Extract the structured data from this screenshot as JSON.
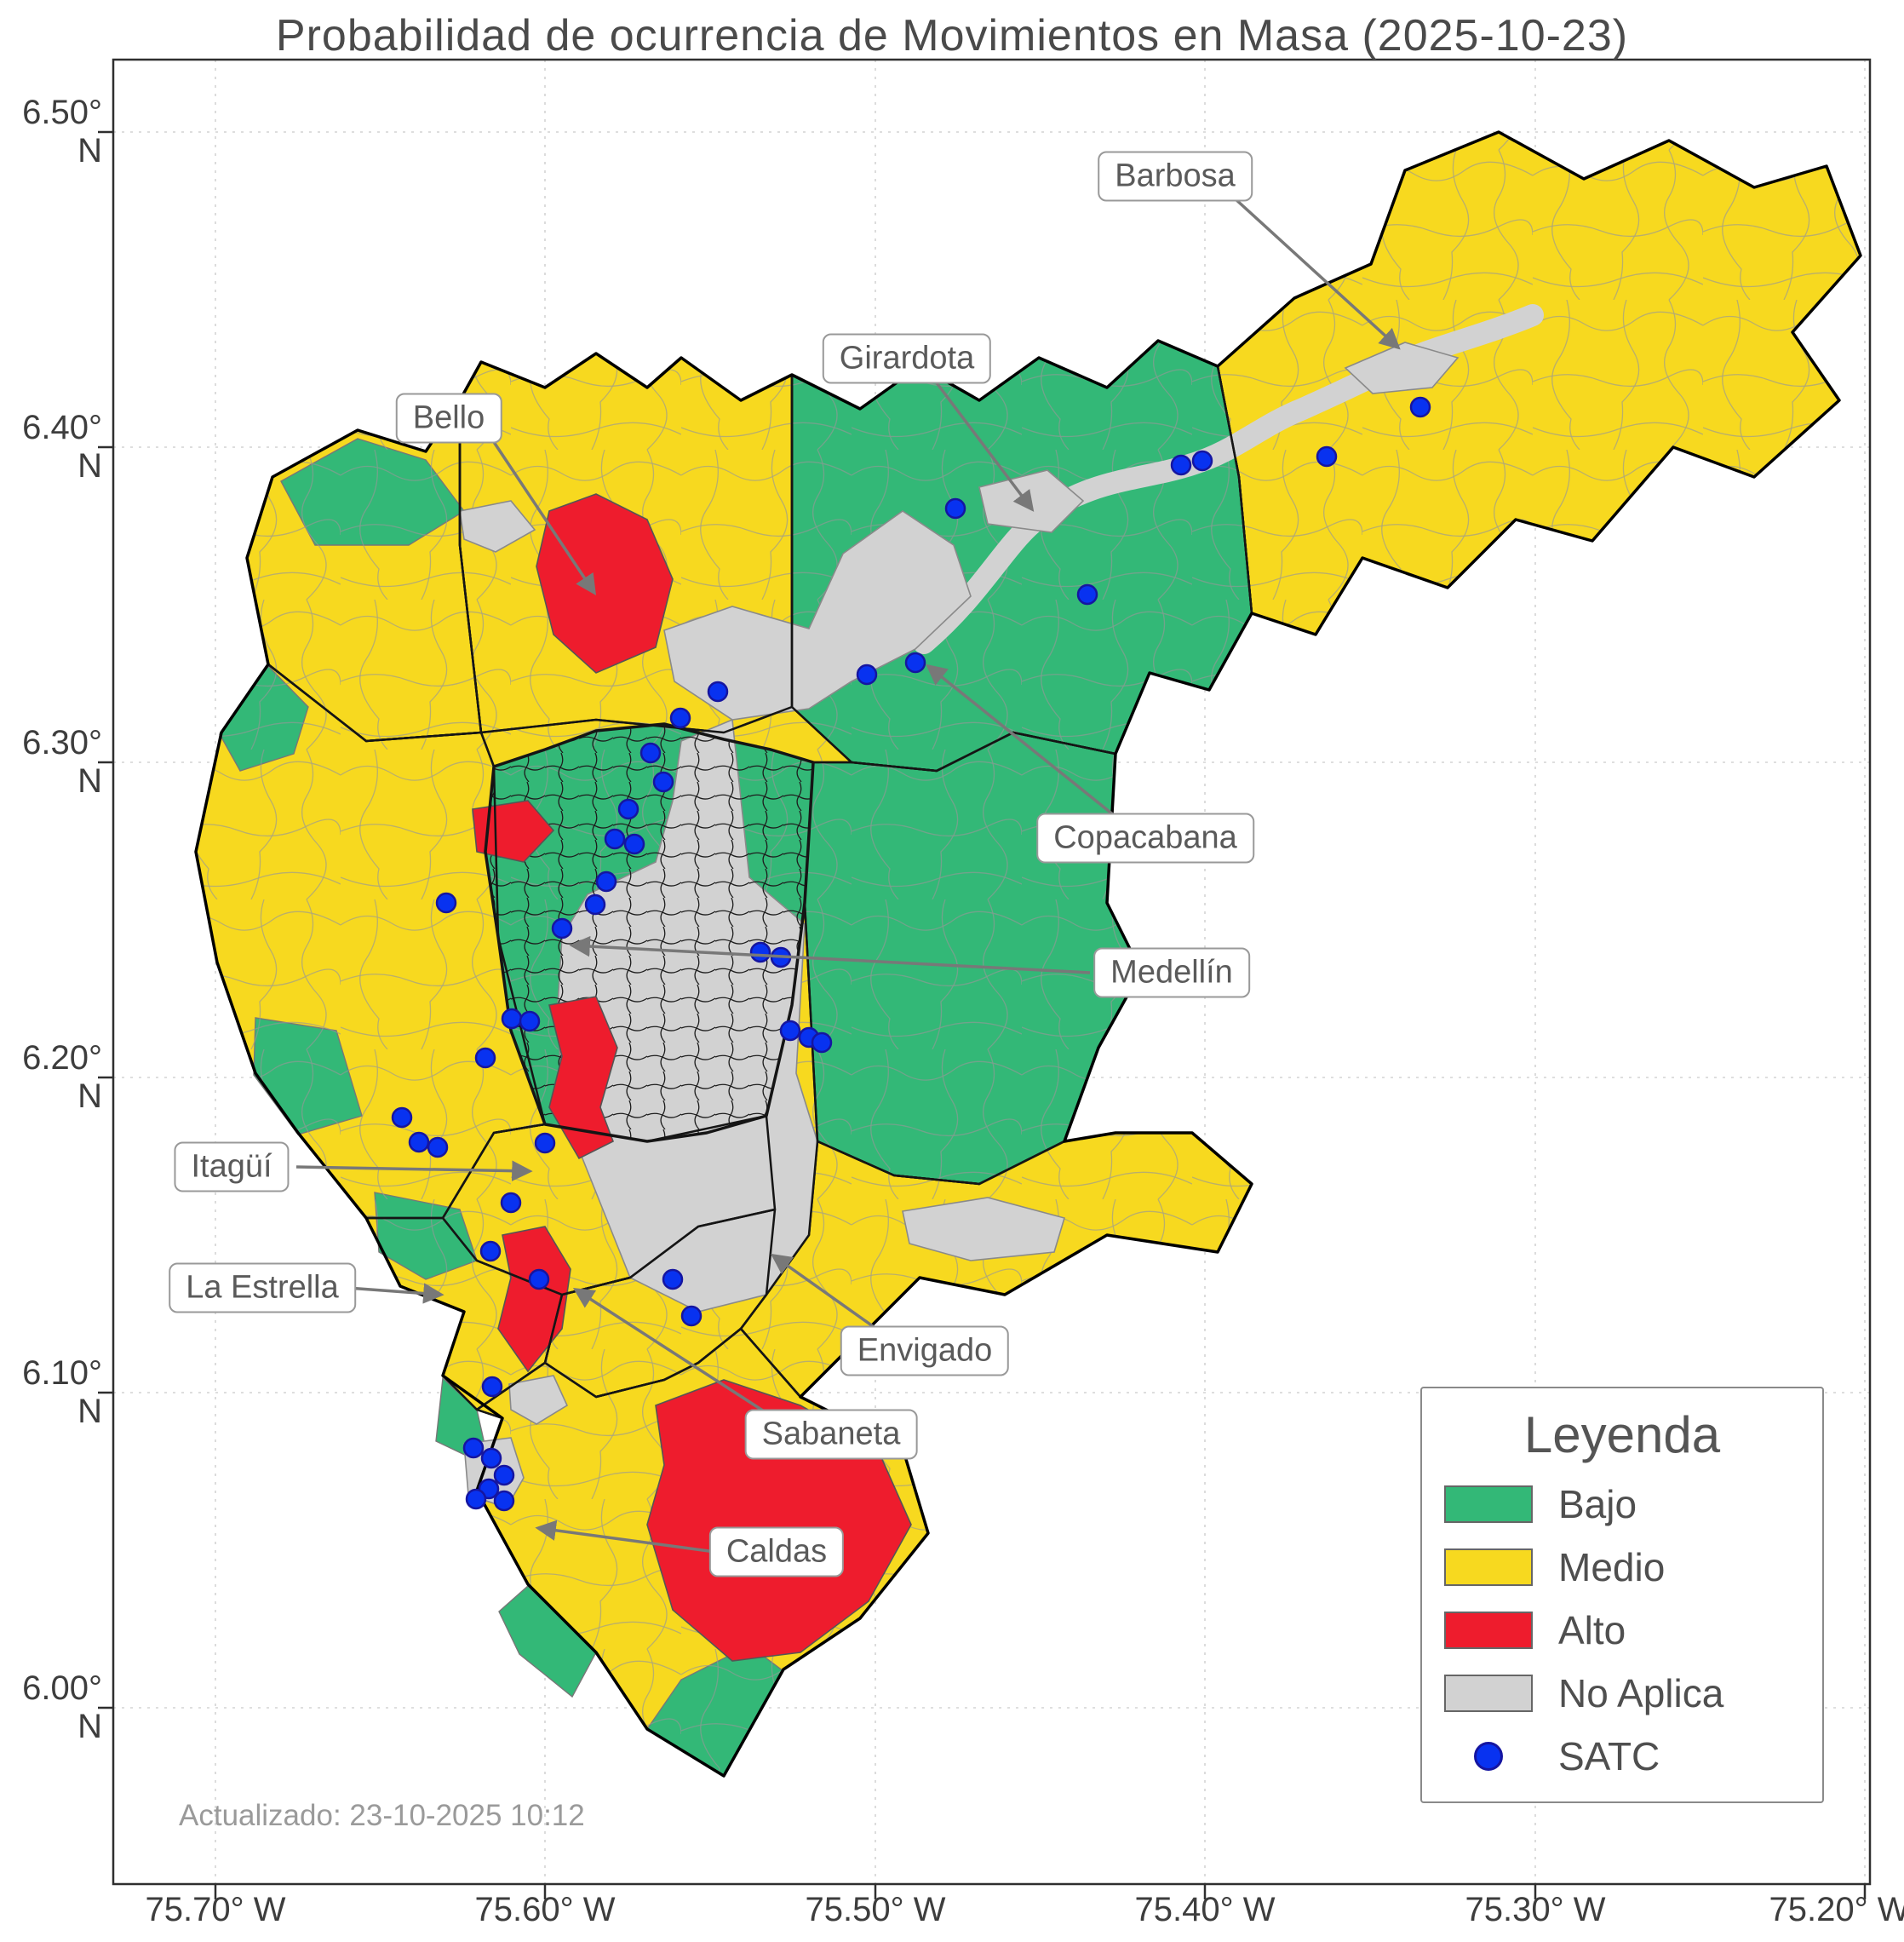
{
  "title": "Probabilidad de ocurrencia de Movimientos en Masa (2025-10-23)",
  "footer": {
    "updated": "Actualizado: 23-10-2025 10:12"
  },
  "axes": {
    "x_ticks": [
      "75.70° W",
      "75.60° W",
      "75.50° W",
      "75.40° W",
      "75.30° W",
      "75.20° W"
    ],
    "y_ticks": [
      "6.50° N",
      "6.40° N",
      "6.30° N",
      "6.20° N",
      "6.10° N",
      "6.00° N"
    ]
  },
  "legend": {
    "title": "Leyenda",
    "items": [
      {
        "label": "Bajo",
        "color_key": "bajo"
      },
      {
        "label": "Medio",
        "color_key": "medio"
      },
      {
        "label": "Alto",
        "color_key": "alto"
      },
      {
        "label": "No Aplica",
        "color_key": "no_aplica"
      },
      {
        "label": "SATC",
        "color_key": "satc"
      }
    ]
  },
  "annotations": [
    {
      "label": "Barbosa"
    },
    {
      "label": "Girardota"
    },
    {
      "label": "Bello"
    },
    {
      "label": "Copacabana"
    },
    {
      "label": "Medellín"
    },
    {
      "label": "Itagüí"
    },
    {
      "label": "La Estrella"
    },
    {
      "label": "Envigado"
    },
    {
      "label": "Sabaneta"
    },
    {
      "label": "Caldas"
    }
  ],
  "colors": {
    "bajo": "#33b877",
    "medio": "#f7d91f",
    "alto": "#ee1c2d",
    "no_aplica": "#d2d2d2",
    "satc": "#0832f0"
  },
  "map": {
    "satc_points": [
      [
        1668,
        478
      ],
      [
        1558,
        536
      ],
      [
        1387,
        546
      ],
      [
        1412,
        541
      ],
      [
        1277,
        698
      ],
      [
        1122,
        597
      ],
      [
        1075,
        778
      ],
      [
        1018,
        792
      ],
      [
        843,
        812
      ],
      [
        799,
        843
      ],
      [
        764,
        884
      ],
      [
        779,
        918
      ],
      [
        738,
        950
      ],
      [
        722,
        985
      ],
      [
        745,
        991
      ],
      [
        712,
        1035
      ],
      [
        699,
        1062
      ],
      [
        660,
        1090
      ],
      [
        893,
        1118
      ],
      [
        917,
        1124
      ],
      [
        928,
        1210
      ],
      [
        950,
        1218
      ],
      [
        965,
        1224
      ],
      [
        524,
        1060
      ],
      [
        601,
        1196
      ],
      [
        622,
        1199
      ],
      [
        570,
        1242
      ],
      [
        472,
        1312
      ],
      [
        492,
        1341
      ],
      [
        514,
        1347
      ],
      [
        640,
        1342
      ],
      [
        600,
        1412
      ],
      [
        576,
        1469
      ],
      [
        633,
        1502
      ],
      [
        790,
        1502
      ],
      [
        812,
        1545
      ],
      [
        578,
        1628
      ],
      [
        556,
        1700
      ],
      [
        577,
        1712
      ],
      [
        592,
        1732
      ],
      [
        574,
        1748
      ],
      [
        559,
        1760
      ],
      [
        592,
        1762
      ]
    ]
  }
}
